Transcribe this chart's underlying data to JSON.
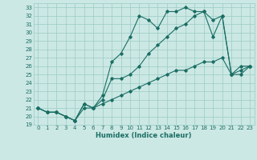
{
  "title": "",
  "xlabel": "Humidex (Indice chaleur)",
  "ylabel": "",
  "background_color": "#cce8e4",
  "grid_color": "#99ccc4",
  "line_color": "#1a6e64",
  "xlim": [
    -0.5,
    23.5
  ],
  "ylim": [
    19,
    33.5
  ],
  "xticks": [
    0,
    1,
    2,
    3,
    4,
    5,
    6,
    7,
    8,
    9,
    10,
    11,
    12,
    13,
    14,
    15,
    16,
    17,
    18,
    19,
    20,
    21,
    22,
    23
  ],
  "yticks": [
    19,
    20,
    21,
    22,
    23,
    24,
    25,
    26,
    27,
    28,
    29,
    30,
    31,
    32,
    33
  ],
  "line1_x": [
    0,
    1,
    2,
    3,
    4,
    5,
    6,
    7,
    8,
    9,
    10,
    11,
    12,
    13,
    14,
    15,
    16,
    17,
    18,
    19,
    20,
    21,
    22,
    23
  ],
  "line1_y": [
    21.0,
    20.5,
    20.5,
    20.0,
    19.5,
    21.5,
    21.0,
    22.5,
    26.5,
    27.5,
    29.5,
    32.0,
    31.5,
    30.5,
    32.5,
    32.5,
    33.0,
    32.5,
    32.5,
    29.5,
    32.0,
    25.0,
    26.0,
    26.0
  ],
  "line2_x": [
    0,
    1,
    2,
    3,
    4,
    5,
    6,
    7,
    8,
    9,
    10,
    11,
    12,
    13,
    14,
    15,
    16,
    17,
    18,
    19,
    20,
    21,
    22,
    23
  ],
  "line2_y": [
    21.0,
    20.5,
    20.5,
    20.0,
    19.5,
    21.5,
    21.0,
    22.0,
    24.5,
    24.5,
    25.0,
    26.0,
    27.5,
    28.5,
    29.5,
    30.5,
    31.0,
    32.0,
    32.5,
    31.5,
    32.0,
    25.0,
    25.0,
    26.0
  ],
  "line3_x": [
    0,
    1,
    2,
    3,
    4,
    5,
    6,
    7,
    8,
    9,
    10,
    11,
    12,
    13,
    14,
    15,
    16,
    17,
    18,
    19,
    20,
    21,
    22,
    23
  ],
  "line3_y": [
    21.0,
    20.5,
    20.5,
    20.0,
    19.5,
    21.0,
    21.0,
    21.5,
    22.0,
    22.5,
    23.0,
    23.5,
    24.0,
    24.5,
    25.0,
    25.5,
    25.5,
    26.0,
    26.5,
    26.5,
    27.0,
    25.0,
    25.5,
    26.0
  ],
  "tick_fontsize": 5.0,
  "xlabel_fontsize": 6.0
}
